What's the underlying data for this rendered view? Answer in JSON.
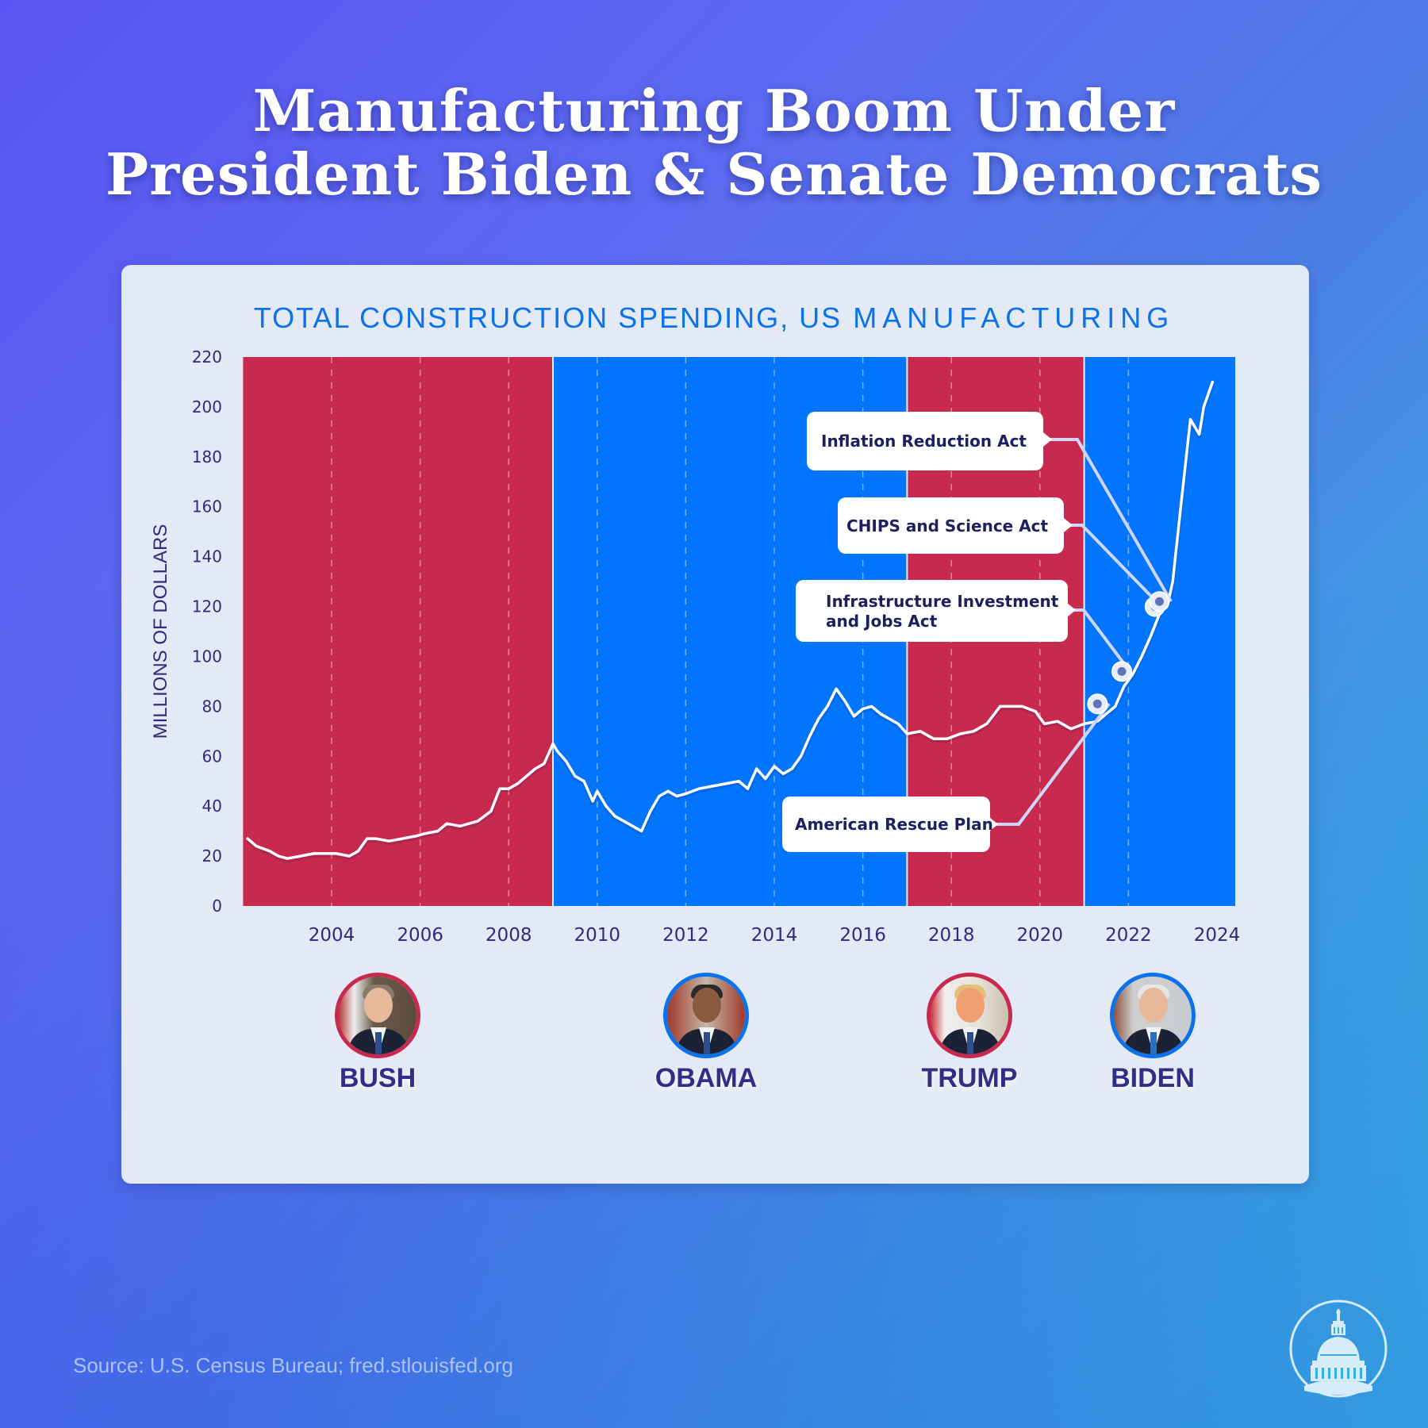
{
  "headline": {
    "line1": "Manufacturing Boom Under",
    "line2": "President Biden & Senate Democrats"
  },
  "chart_data": {
    "type": "line",
    "title": "TOTAL CONSTRUCTION SPENDING, US",
    "title_part2": "MANUFACTURING",
    "xlabel": "",
    "ylabel": "MILLIONS OF DOLLARS",
    "ylim": [
      0,
      220
    ],
    "xlim": [
      2002.0,
      2024.0
    ],
    "yticks": [
      0,
      20,
      40,
      60,
      80,
      100,
      120,
      140,
      160,
      180,
      200,
      220
    ],
    "xticks": [
      2004,
      2006,
      2008,
      2010,
      2012,
      2014,
      2016,
      2018,
      2020,
      2022,
      2024
    ],
    "grid": "vertical dashed at even years",
    "legend": "none",
    "colors": {
      "line": "#ffffff",
      "republican": "#c8294e",
      "democrat": "#0275ff",
      "axis_text": "#2b2d7c"
    },
    "periods": [
      {
        "president": "BUSH",
        "party": "republican",
        "start": 2002.0,
        "end": 2009.0
      },
      {
        "president": "OBAMA",
        "party": "democrat",
        "start": 2009.0,
        "end": 2017.0
      },
      {
        "president": "TRUMP",
        "party": "republican",
        "start": 2017.0,
        "end": 2021.0
      },
      {
        "president": "BIDEN",
        "party": "democrat",
        "start": 2021.0,
        "end": 2024.0
      }
    ],
    "series": [
      {
        "name": "Total Construction Spending: Manufacturing",
        "x": [
          2002.1,
          2002.3,
          2002.6,
          2002.8,
          2003.0,
          2003.3,
          2003.6,
          2003.9,
          2004.1,
          2004.4,
          2004.6,
          2004.8,
          2005.0,
          2005.3,
          2005.6,
          2005.9,
          2006.1,
          2006.4,
          2006.6,
          2006.9,
          2007.1,
          2007.3,
          2007.6,
          2007.8,
          2008.0,
          2008.2,
          2008.4,
          2008.6,
          2008.8,
          2009.0,
          2009.1,
          2009.3,
          2009.5,
          2009.7,
          2009.9,
          2010.0,
          2010.2,
          2010.4,
          2010.7,
          2011.0,
          2011.2,
          2011.4,
          2011.6,
          2011.8,
          2012.0,
          2012.3,
          2012.6,
          2012.9,
          2013.2,
          2013.4,
          2013.6,
          2013.8,
          2014.0,
          2014.2,
          2014.4,
          2014.6,
          2014.8,
          2015.0,
          2015.2,
          2015.4,
          2015.6,
          2015.8,
          2016.0,
          2016.2,
          2016.4,
          2016.6,
          2016.8,
          2017.0,
          2017.3,
          2017.6,
          2017.9,
          2018.2,
          2018.5,
          2018.8,
          2019.1,
          2019.3,
          2019.6,
          2019.9,
          2020.1,
          2020.4,
          2020.7,
          2021.0,
          2021.3,
          2021.5,
          2021.7,
          2021.9,
          2022.1,
          2022.3,
          2022.5,
          2022.7,
          2022.9,
          2023.0,
          2023.2,
          2023.4,
          2023.6,
          2023.7,
          2023.9
        ],
        "y": [
          27,
          24,
          22,
          20,
          19,
          20,
          21,
          21,
          21,
          20,
          22,
          27,
          27,
          26,
          27,
          28,
          29,
          30,
          33,
          32,
          33,
          34,
          38,
          47,
          47,
          49,
          52,
          55,
          57,
          65,
          62,
          58,
          52,
          50,
          42,
          46,
          40,
          36,
          33,
          30,
          38,
          44,
          46,
          44,
          45,
          47,
          48,
          49,
          50,
          47,
          55,
          51,
          56,
          53,
          55,
          60,
          68,
          75,
          80,
          87,
          82,
          76,
          79,
          80,
          77,
          75,
          73,
          69,
          70,
          67,
          67,
          69,
          70,
          73,
          80,
          80,
          80,
          78,
          73,
          74,
          71,
          73,
          74,
          77,
          80,
          88,
          93,
          100,
          108,
          117,
          122,
          130,
          163,
          195,
          189,
          200,
          210
        ]
      }
    ],
    "annotations": [
      {
        "label": "American Rescue Plan",
        "x": 2021.3,
        "y": 81
      },
      {
        "label": "Infrastructure Investment and Jobs Act",
        "x": 2021.85,
        "y": 94
      },
      {
        "label": "CHIPS and Science Act",
        "x": 2022.6,
        "y": 120
      },
      {
        "label": "Inflation Reduction Act",
        "x": 2022.7,
        "y": 122
      }
    ]
  },
  "callouts": {
    "ira": "Inflation Reduction Act",
    "chips": "CHIPS and Science Act",
    "iija_line1": "Infrastructure Investment",
    "iija_line2": "and Jobs Act",
    "arp": "American Rescue Plan"
  },
  "presidents": [
    {
      "name": "BUSH",
      "party_color": "#c8294e"
    },
    {
      "name": "OBAMA",
      "party_color": "#0b72ec"
    },
    {
      "name": "TRUMP",
      "party_color": "#c8294e"
    },
    {
      "name": "BIDEN",
      "party_color": "#0b72ec"
    }
  ],
  "footer": {
    "source": "Source: U.S. Census Bureau; fred.stlouisfed.org",
    "logo": "capitol-dome-icon"
  }
}
